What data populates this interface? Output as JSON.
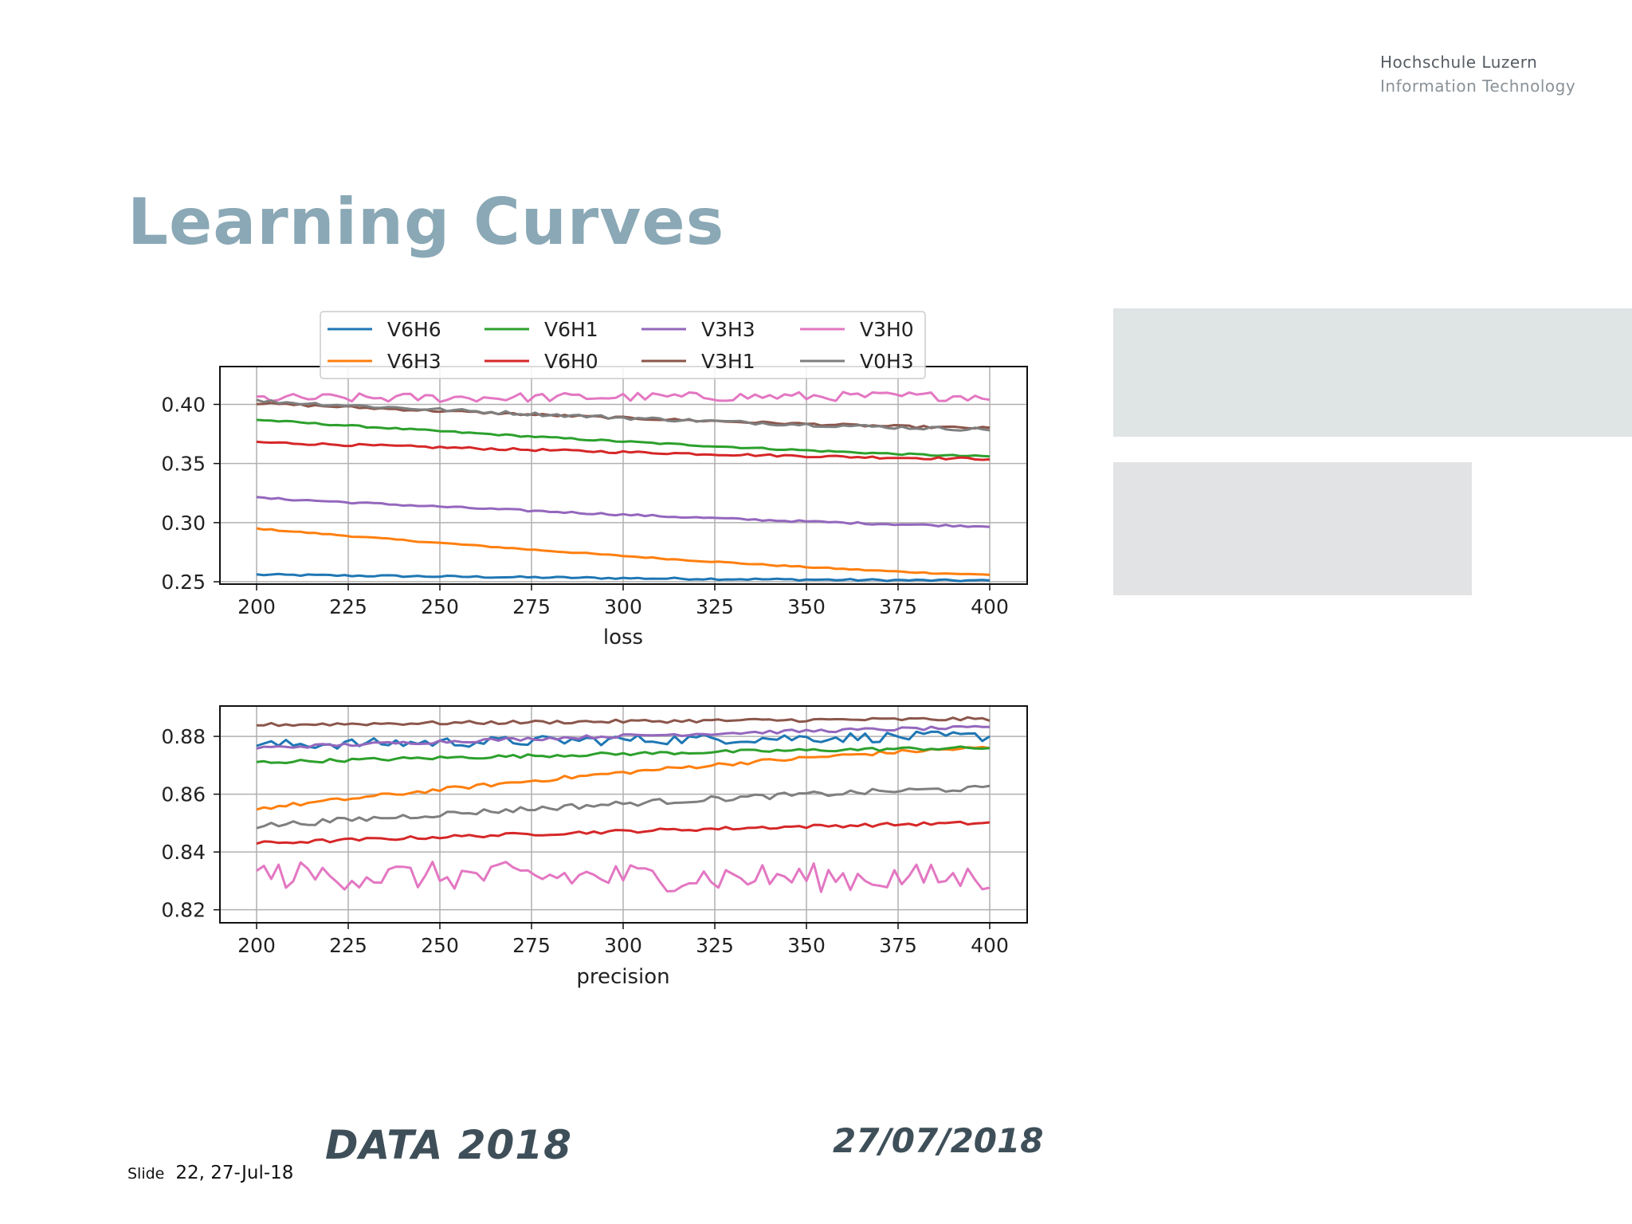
{
  "logo": {
    "line1": "Hochschule Luzern",
    "line2": "Information Technology"
  },
  "title": "Learning Curves",
  "footer": {
    "event": "DATA 2018",
    "date": "27/07/2018",
    "slide_label": "Slide",
    "slide_info": "22, 27-Jul-18"
  },
  "chart_data": [
    {
      "type": "line",
      "xlabel": "loss",
      "xlim": [
        200,
        400
      ],
      "ylim": [
        0.248,
        0.432
      ],
      "xticks": [
        200,
        225,
        250,
        275,
        300,
        325,
        350,
        375,
        400
      ],
      "yticks": [
        0.25,
        0.3,
        0.35,
        0.4
      ],
      "ytick_labels": [
        "0.25",
        "0.30",
        "0.35",
        "0.40"
      ],
      "grid": true,
      "legend": {
        "placement": "top-center",
        "columns": 4
      },
      "series": [
        {
          "name": "V6H6",
          "color": "#1f77b4",
          "start": 0.256,
          "end": 0.251,
          "noise": 0.0008
        },
        {
          "name": "V6H3",
          "color": "#ff7f0e",
          "start": 0.295,
          "end": 0.256,
          "noise": 0.0005
        },
        {
          "name": "V6H1",
          "color": "#2ca02c",
          "start": 0.387,
          "end": 0.356,
          "noise": 0.0007
        },
        {
          "name": "V6H0",
          "color": "#d62728",
          "start": 0.368,
          "end": 0.354,
          "noise": 0.001
        },
        {
          "name": "V3H3",
          "color": "#9467bd",
          "start": 0.321,
          "end": 0.297,
          "noise": 0.0008
        },
        {
          "name": "V3H1",
          "color": "#8c564b",
          "start": 0.401,
          "end": 0.38,
          "noise": 0.001
        },
        {
          "name": "V3H0",
          "color": "#e377c2",
          "start": 0.405,
          "end": 0.407,
          "noise": 0.004
        },
        {
          "name": "V0H3",
          "color": "#7f7f7f",
          "start": 0.403,
          "end": 0.379,
          "noise": 0.0015
        }
      ]
    },
    {
      "type": "line",
      "xlabel": "precision",
      "xlim": [
        200,
        400
      ],
      "ylim": [
        0.8155,
        0.8905
      ],
      "xticks": [
        200,
        225,
        250,
        275,
        300,
        325,
        350,
        375,
        400
      ],
      "yticks": [
        0.82,
        0.84,
        0.86,
        0.88
      ],
      "ytick_labels": [
        "0.82",
        "0.84",
        "0.86",
        "0.88"
      ],
      "grid": true,
      "series": [
        {
          "name": "V6H6",
          "color": "#1f77b4",
          "start": 0.877,
          "end": 0.88,
          "noise": 0.0018
        },
        {
          "name": "V6H3",
          "color": "#ff7f0e",
          "start": 0.855,
          "end": 0.876,
          "noise": 0.0007
        },
        {
          "name": "V6H1",
          "color": "#2ca02c",
          "start": 0.871,
          "end": 0.876,
          "noise": 0.0006
        },
        {
          "name": "V6H0",
          "color": "#d62728",
          "start": 0.843,
          "end": 0.85,
          "noise": 0.0006
        },
        {
          "name": "V3H3",
          "color": "#9467bd",
          "start": 0.876,
          "end": 0.883,
          "noise": 0.0006
        },
        {
          "name": "V3H1",
          "color": "#8c564b",
          "start": 0.884,
          "end": 0.886,
          "noise": 0.0006
        },
        {
          "name": "V3H0",
          "color": "#e377c2",
          "start": 0.832,
          "end": 0.831,
          "noise": 0.005
        },
        {
          "name": "V0H3",
          "color": "#7f7f7f",
          "start": 0.849,
          "end": 0.862,
          "noise": 0.001
        }
      ]
    }
  ]
}
